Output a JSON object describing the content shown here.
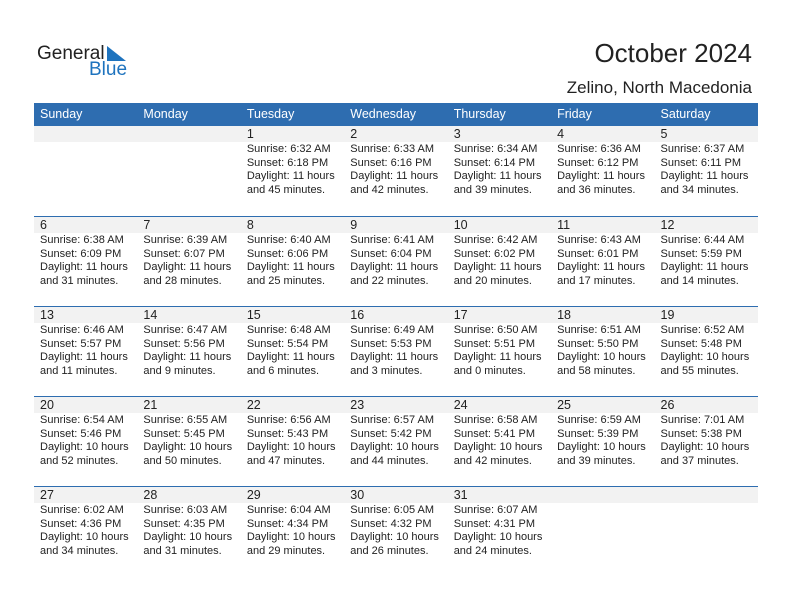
{
  "logo": {
    "text1": "General",
    "text2": "Blue",
    "color": "#1e73be"
  },
  "title": "October 2024",
  "location": "Zelino, North Macedonia",
  "colors": {
    "header": "#2e6db0",
    "band": "#f2f2f2"
  },
  "weekdays": [
    "Sunday",
    "Monday",
    "Tuesday",
    "Wednesday",
    "Thursday",
    "Friday",
    "Saturday"
  ],
  "weeks": [
    [
      null,
      null,
      {
        "day": "1",
        "sunrise": "Sunrise: 6:32 AM",
        "sunset": "Sunset: 6:18 PM",
        "daylight1": "Daylight: 11 hours",
        "daylight2": "and 45 minutes."
      },
      {
        "day": "2",
        "sunrise": "Sunrise: 6:33 AM",
        "sunset": "Sunset: 6:16 PM",
        "daylight1": "Daylight: 11 hours",
        "daylight2": "and 42 minutes."
      },
      {
        "day": "3",
        "sunrise": "Sunrise: 6:34 AM",
        "sunset": "Sunset: 6:14 PM",
        "daylight1": "Daylight: 11 hours",
        "daylight2": "and 39 minutes."
      },
      {
        "day": "4",
        "sunrise": "Sunrise: 6:36 AM",
        "sunset": "Sunset: 6:12 PM",
        "daylight1": "Daylight: 11 hours",
        "daylight2": "and 36 minutes."
      },
      {
        "day": "5",
        "sunrise": "Sunrise: 6:37 AM",
        "sunset": "Sunset: 6:11 PM",
        "daylight1": "Daylight: 11 hours",
        "daylight2": "and 34 minutes."
      }
    ],
    [
      {
        "day": "6",
        "sunrise": "Sunrise: 6:38 AM",
        "sunset": "Sunset: 6:09 PM",
        "daylight1": "Daylight: 11 hours",
        "daylight2": "and 31 minutes."
      },
      {
        "day": "7",
        "sunrise": "Sunrise: 6:39 AM",
        "sunset": "Sunset: 6:07 PM",
        "daylight1": "Daylight: 11 hours",
        "daylight2": "and 28 minutes."
      },
      {
        "day": "8",
        "sunrise": "Sunrise: 6:40 AM",
        "sunset": "Sunset: 6:06 PM",
        "daylight1": "Daylight: 11 hours",
        "daylight2": "and 25 minutes."
      },
      {
        "day": "9",
        "sunrise": "Sunrise: 6:41 AM",
        "sunset": "Sunset: 6:04 PM",
        "daylight1": "Daylight: 11 hours",
        "daylight2": "and 22 minutes."
      },
      {
        "day": "10",
        "sunrise": "Sunrise: 6:42 AM",
        "sunset": "Sunset: 6:02 PM",
        "daylight1": "Daylight: 11 hours",
        "daylight2": "and 20 minutes."
      },
      {
        "day": "11",
        "sunrise": "Sunrise: 6:43 AM",
        "sunset": "Sunset: 6:01 PM",
        "daylight1": "Daylight: 11 hours",
        "daylight2": "and 17 minutes."
      },
      {
        "day": "12",
        "sunrise": "Sunrise: 6:44 AM",
        "sunset": "Sunset: 5:59 PM",
        "daylight1": "Daylight: 11 hours",
        "daylight2": "and 14 minutes."
      }
    ],
    [
      {
        "day": "13",
        "sunrise": "Sunrise: 6:46 AM",
        "sunset": "Sunset: 5:57 PM",
        "daylight1": "Daylight: 11 hours",
        "daylight2": "and 11 minutes."
      },
      {
        "day": "14",
        "sunrise": "Sunrise: 6:47 AM",
        "sunset": "Sunset: 5:56 PM",
        "daylight1": "Daylight: 11 hours",
        "daylight2": "and 9 minutes."
      },
      {
        "day": "15",
        "sunrise": "Sunrise: 6:48 AM",
        "sunset": "Sunset: 5:54 PM",
        "daylight1": "Daylight: 11 hours",
        "daylight2": "and 6 minutes."
      },
      {
        "day": "16",
        "sunrise": "Sunrise: 6:49 AM",
        "sunset": "Sunset: 5:53 PM",
        "daylight1": "Daylight: 11 hours",
        "daylight2": "and 3 minutes."
      },
      {
        "day": "17",
        "sunrise": "Sunrise: 6:50 AM",
        "sunset": "Sunset: 5:51 PM",
        "daylight1": "Daylight: 11 hours",
        "daylight2": "and 0 minutes."
      },
      {
        "day": "18",
        "sunrise": "Sunrise: 6:51 AM",
        "sunset": "Sunset: 5:50 PM",
        "daylight1": "Daylight: 10 hours",
        "daylight2": "and 58 minutes."
      },
      {
        "day": "19",
        "sunrise": "Sunrise: 6:52 AM",
        "sunset": "Sunset: 5:48 PM",
        "daylight1": "Daylight: 10 hours",
        "daylight2": "and 55 minutes."
      }
    ],
    [
      {
        "day": "20",
        "sunrise": "Sunrise: 6:54 AM",
        "sunset": "Sunset: 5:46 PM",
        "daylight1": "Daylight: 10 hours",
        "daylight2": "and 52 minutes."
      },
      {
        "day": "21",
        "sunrise": "Sunrise: 6:55 AM",
        "sunset": "Sunset: 5:45 PM",
        "daylight1": "Daylight: 10 hours",
        "daylight2": "and 50 minutes."
      },
      {
        "day": "22",
        "sunrise": "Sunrise: 6:56 AM",
        "sunset": "Sunset: 5:43 PM",
        "daylight1": "Daylight: 10 hours",
        "daylight2": "and 47 minutes."
      },
      {
        "day": "23",
        "sunrise": "Sunrise: 6:57 AM",
        "sunset": "Sunset: 5:42 PM",
        "daylight1": "Daylight: 10 hours",
        "daylight2": "and 44 minutes."
      },
      {
        "day": "24",
        "sunrise": "Sunrise: 6:58 AM",
        "sunset": "Sunset: 5:41 PM",
        "daylight1": "Daylight: 10 hours",
        "daylight2": "and 42 minutes."
      },
      {
        "day": "25",
        "sunrise": "Sunrise: 6:59 AM",
        "sunset": "Sunset: 5:39 PM",
        "daylight1": "Daylight: 10 hours",
        "daylight2": "and 39 minutes."
      },
      {
        "day": "26",
        "sunrise": "Sunrise: 7:01 AM",
        "sunset": "Sunset: 5:38 PM",
        "daylight1": "Daylight: 10 hours",
        "daylight2": "and 37 minutes."
      }
    ],
    [
      {
        "day": "27",
        "sunrise": "Sunrise: 6:02 AM",
        "sunset": "Sunset: 4:36 PM",
        "daylight1": "Daylight: 10 hours",
        "daylight2": "and 34 minutes."
      },
      {
        "day": "28",
        "sunrise": "Sunrise: 6:03 AM",
        "sunset": "Sunset: 4:35 PM",
        "daylight1": "Daylight: 10 hours",
        "daylight2": "and 31 minutes."
      },
      {
        "day": "29",
        "sunrise": "Sunrise: 6:04 AM",
        "sunset": "Sunset: 4:34 PM",
        "daylight1": "Daylight: 10 hours",
        "daylight2": "and 29 minutes."
      },
      {
        "day": "30",
        "sunrise": "Sunrise: 6:05 AM",
        "sunset": "Sunset: 4:32 PM",
        "daylight1": "Daylight: 10 hours",
        "daylight2": "and 26 minutes."
      },
      {
        "day": "31",
        "sunrise": "Sunrise: 6:07 AM",
        "sunset": "Sunset: 4:31 PM",
        "daylight1": "Daylight: 10 hours",
        "daylight2": "and 24 minutes."
      },
      null,
      null
    ]
  ]
}
